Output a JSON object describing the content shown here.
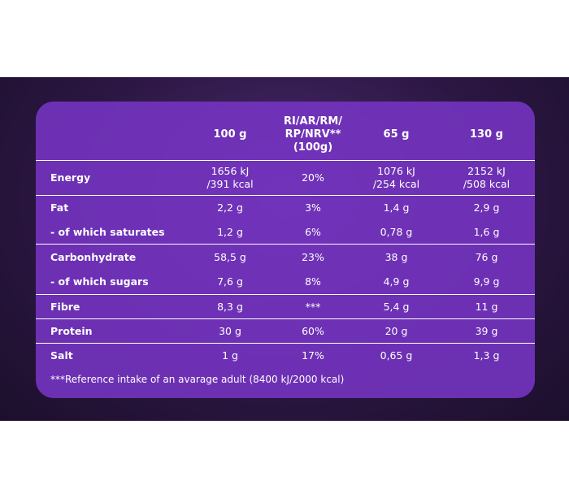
{
  "table": {
    "header": [
      "",
      "100 g",
      "RI/AR/RM/\nRP/NRV**\n(100g)",
      "65 g",
      "130 g"
    ],
    "rows": [
      [
        "Energy",
        "1656 kJ\n/391 kcal",
        "20%",
        "1076 kJ\n/254 kcal",
        "2152 kJ\n/508 kcal"
      ],
      [
        "Fat",
        "2,2 g",
        "3%",
        "1,4 g",
        "2,9 g"
      ],
      [
        "- of which saturates",
        "1,2 g",
        "6%",
        "0,78 g",
        "1,6 g"
      ],
      [
        "Carbonhydrate",
        "58,5 g",
        "23%",
        "38 g",
        "76 g"
      ],
      [
        "- of which sugars",
        "7,6 g",
        "8%",
        "4,9 g",
        "9,9 g"
      ],
      [
        "Fibre",
        "8,3 g",
        "***",
        "5,4 g",
        "11 g"
      ],
      [
        "Protein",
        "30 g",
        "60%",
        "20 g",
        "39 g"
      ],
      [
        "Salt",
        "1 g",
        "17%",
        "0,65 g",
        "1,3 g"
      ]
    ],
    "footnote": "***Reference intake of an avarage adult (8400 kJ/2000 kcal)"
  }
}
